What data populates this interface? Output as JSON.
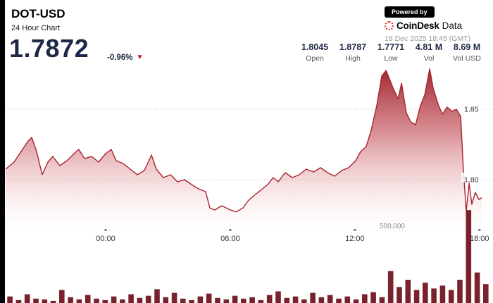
{
  "header": {
    "symbol": "DOT-USD",
    "subtitle": "24 Hour Chart",
    "price": "1.7872",
    "change_pct": "-0.96%",
    "change_direction": "down"
  },
  "branding": {
    "powered_by": "Powered by",
    "brand_bold": "CoinDesk",
    "brand_light": "Data",
    "timestamp": "18 Dec 2025 18:45 (GMT)"
  },
  "stats": [
    {
      "value": "1.8045",
      "label": "Open"
    },
    {
      "value": "1.8787",
      "label": "High"
    },
    {
      "value": "1.7771",
      "label": "Low"
    },
    {
      "value": "4.81 M",
      "label": "Vol"
    },
    {
      "value": "8.69 M",
      "label": "Vol USD"
    }
  ],
  "colors": {
    "accent_red": "#c01616",
    "line": "#a8232e",
    "volume_bar": "#7a222b",
    "navy": "#1e2745",
    "brand_red": "#e0342c",
    "gridline": "#b9b9b9"
  },
  "chart_data": {
    "type": "area",
    "title": "DOT-USD 24 Hour Chart",
    "x_axis": {
      "unit": "time-of-day",
      "ticks": [
        {
          "label": "00:00",
          "t": 4.84
        },
        {
          "label": "06:00",
          "t": 10.87
        },
        {
          "label": "12:00",
          "t": 16.9
        },
        {
          "label": "18:00",
          "t": 22.93
        }
      ]
    },
    "y_axis": {
      "ticks": [
        {
          "label": "1.85",
          "value": 1.85
        },
        {
          "label": "1.80",
          "value": 1.8
        }
      ],
      "range": [
        1.7645,
        1.893
      ]
    },
    "series": [
      {
        "name": "DOT-USD price",
        "points": [
          [
            0.0,
            1.8075
          ],
          [
            0.41,
            1.8125
          ],
          [
            0.75,
            1.82
          ],
          [
            1.09,
            1.8275
          ],
          [
            1.26,
            1.83
          ],
          [
            1.5,
            1.82
          ],
          [
            1.77,
            1.8035
          ],
          [
            2.05,
            1.8125
          ],
          [
            2.28,
            1.8165
          ],
          [
            2.62,
            1.81
          ],
          [
            2.97,
            1.8135
          ],
          [
            3.31,
            1.8185
          ],
          [
            3.54,
            1.8215
          ],
          [
            3.82,
            1.815
          ],
          [
            4.16,
            1.8165
          ],
          [
            4.5,
            1.8125
          ],
          [
            4.84,
            1.8185
          ],
          [
            5.11,
            1.8215
          ],
          [
            5.35,
            1.8135
          ],
          [
            5.69,
            1.8115
          ],
          [
            6.03,
            1.8075
          ],
          [
            6.37,
            1.8035
          ],
          [
            6.71,
            1.8065
          ],
          [
            7.06,
            1.8175
          ],
          [
            7.29,
            1.8075
          ],
          [
            7.63,
            1.8015
          ],
          [
            7.98,
            1.8035
          ],
          [
            8.32,
            1.7985
          ],
          [
            8.66,
            1.8
          ],
          [
            9.0,
            1.7965
          ],
          [
            9.34,
            1.7935
          ],
          [
            9.68,
            1.7915
          ],
          [
            9.88,
            1.78
          ],
          [
            10.12,
            1.7785
          ],
          [
            10.46,
            1.7815
          ],
          [
            10.8,
            1.779
          ],
          [
            11.15,
            1.7771
          ],
          [
            11.49,
            1.78
          ],
          [
            11.73,
            1.785
          ],
          [
            12.0,
            1.7885
          ],
          [
            12.34,
            1.7925
          ],
          [
            12.68,
            1.7965
          ],
          [
            12.95,
            1.8015
          ],
          [
            13.19,
            1.7985
          ],
          [
            13.53,
            1.805
          ],
          [
            13.87,
            1.8015
          ],
          [
            14.21,
            1.8035
          ],
          [
            14.55,
            1.8075
          ],
          [
            14.9,
            1.8055
          ],
          [
            15.24,
            1.8085
          ],
          [
            15.58,
            1.805
          ],
          [
            15.92,
            1.8025
          ],
          [
            16.26,
            1.8065
          ],
          [
            16.6,
            1.8085
          ],
          [
            16.94,
            1.8135
          ],
          [
            17.18,
            1.82
          ],
          [
            17.45,
            1.8235
          ],
          [
            17.69,
            1.835
          ],
          [
            17.96,
            1.8525
          ],
          [
            18.2,
            1.8735
          ],
          [
            18.41,
            1.8775
          ],
          [
            18.58,
            1.8715
          ],
          [
            18.75,
            1.865
          ],
          [
            18.99,
            1.8575
          ],
          [
            19.16,
            1.8685
          ],
          [
            19.39,
            1.8475
          ],
          [
            19.6,
            1.841
          ],
          [
            19.84,
            1.839
          ],
          [
            20.07,
            1.8525
          ],
          [
            20.28,
            1.86
          ],
          [
            20.52,
            1.8787
          ],
          [
            20.69,
            1.865
          ],
          [
            20.93,
            1.8535
          ],
          [
            21.13,
            1.8465
          ],
          [
            21.37,
            1.8515
          ],
          [
            21.61,
            1.8485
          ],
          [
            21.81,
            1.85
          ],
          [
            22.02,
            1.845
          ],
          [
            22.15,
            1.8075
          ],
          [
            22.29,
            1.7775
          ],
          [
            22.43,
            1.7975
          ],
          [
            22.56,
            1.7825
          ],
          [
            22.73,
            1.791
          ],
          [
            22.9,
            1.786
          ],
          [
            23.04,
            1.7872
          ]
        ]
      }
    ],
    "volume": {
      "name": "volume",
      "axis_tick": {
        "label": "500,000",
        "value": 500000
      },
      "values": [
        45000,
        20000,
        60000,
        30000,
        25000,
        15000,
        90000,
        40000,
        25000,
        55000,
        30000,
        20000,
        45000,
        25000,
        60000,
        35000,
        50000,
        95000,
        40000,
        70000,
        30000,
        20000,
        45000,
        65000,
        35000,
        25000,
        50000,
        30000,
        40000,
        20000,
        55000,
        80000,
        35000,
        45000,
        25000,
        70000,
        40000,
        55000,
        30000,
        45000,
        25000,
        60000,
        75000,
        40000,
        220000,
        110000,
        160000,
        90000,
        140000,
        100000,
        120000,
        90000,
        160000,
        640000,
        210000,
        130000
      ]
    },
    "legend": "none",
    "grid": "dotted-horizontal"
  }
}
